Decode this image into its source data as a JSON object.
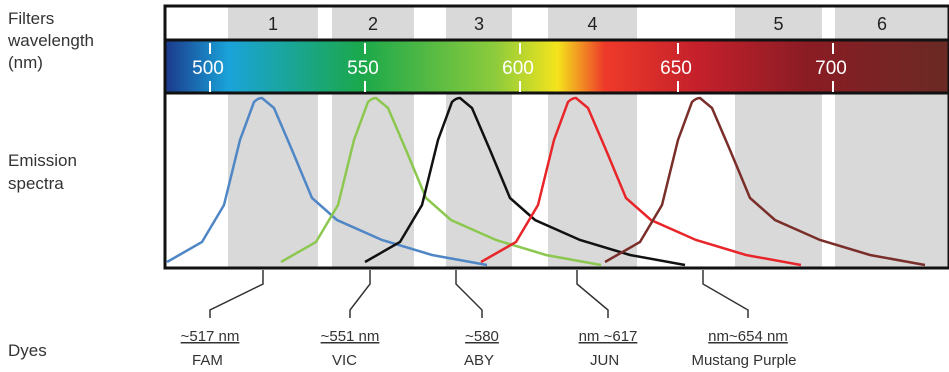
{
  "left_labels": {
    "filters": [
      "Filters",
      "wavelength",
      "(nm)"
    ],
    "emission": [
      "Emission",
      "spectra"
    ],
    "dyes": "Dyes"
  },
  "filters": [
    "1",
    "2",
    "3",
    "4",
    "5",
    "6"
  ],
  "wavelengths": [
    "500",
    "550",
    "600",
    "650",
    "700"
  ],
  "dyes": [
    {
      "wavelength": "~517 nm",
      "name": "FAM"
    },
    {
      "wavelength": "~551 nm",
      "name": "VIC"
    },
    {
      "wavelength": "~580",
      "name": "ABY"
    },
    {
      "wavelength": "nm ~617",
      "name": "JUN"
    },
    {
      "wavelength": "nm~654 nm",
      "name": "Mustang Purple"
    }
  ]
}
